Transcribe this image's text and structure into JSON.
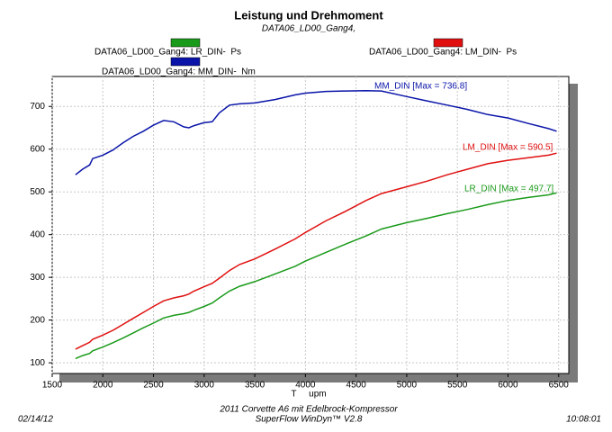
{
  "chart_data": {
    "type": "line",
    "title": "Leistung und Drehmoment",
    "subtitle": "DATA06_LD00_Gang4,",
    "xlabel": "T     upm",
    "x": [
      1730,
      1800,
      1870,
      1900,
      2000,
      2100,
      2200,
      2300,
      2400,
      2500,
      2600,
      2700,
      2800,
      2850,
      2900,
      3000,
      3080,
      3150,
      3250,
      3350,
      3500,
      3700,
      3900,
      4000,
      4200,
      4400,
      4600,
      4750,
      5000,
      5200,
      5400,
      5600,
      5800,
      6000,
      6200,
      6400,
      6480
    ],
    "series": [
      {
        "name": "DATA06_LD00_Gang4: LR_DIN-  Ps",
        "color": "#1a9a1a",
        "annotation": "LR_DIN [Max = 497.7]",
        "values": [
          110,
          117,
          122,
          128,
          137,
          147,
          158,
          170,
          182,
          193,
          205,
          211,
          215,
          218,
          223,
          232,
          240,
          252,
          268,
          279,
          290,
          308,
          326,
          338,
          358,
          378,
          397,
          413,
          428,
          438,
          449,
          459,
          470,
          480,
          487,
          493,
          497.7
        ]
      },
      {
        "name": "DATA06_LD00_Gang4: LM_DIN-  Ps",
        "color": "#e01010",
        "annotation": "LM_DIN [Max = 590.5]",
        "values": [
          132,
          140,
          148,
          155,
          165,
          176,
          190,
          204,
          218,
          232,
          245,
          252,
          257,
          261,
          268,
          278,
          286,
          298,
          316,
          330,
          343,
          366,
          390,
          405,
          432,
          455,
          480,
          496,
          512,
          525,
          540,
          553,
          566,
          574,
          580,
          586,
          590.5
        ]
      },
      {
        "name": "DATA06_LD00_Gang4: MM_DIN-  Nm",
        "color": "#0a14a8",
        "annotation": "MM_DIN [Max = 736.8]",
        "values": [
          540,
          553,
          563,
          578,
          586,
          598,
          615,
          630,
          642,
          656,
          667,
          664,
          652,
          650,
          655,
          662,
          664,
          685,
          703,
          706,
          708,
          716,
          727,
          731,
          735,
          736,
          736.8,
          736,
          723,
          713,
          703,
          693,
          681,
          673,
          660,
          648,
          642
        ]
      }
    ],
    "xlim": [
      1500,
      6600
    ],
    "ylim": [
      75,
      770
    ],
    "xticks": [
      1500,
      2000,
      2500,
      3000,
      3500,
      4000,
      4500,
      5000,
      5500,
      6000,
      6500
    ],
    "yticks": [
      100,
      200,
      300,
      400,
      500,
      600,
      700
    ],
    "grid": true,
    "footer": {
      "caption": "2011 Corvette A6 mit Edelbrock-Kompressor",
      "software": "SuperFlow WinDyn™ V2.8",
      "date": "02/14/12",
      "time": "10:08:01"
    }
  }
}
